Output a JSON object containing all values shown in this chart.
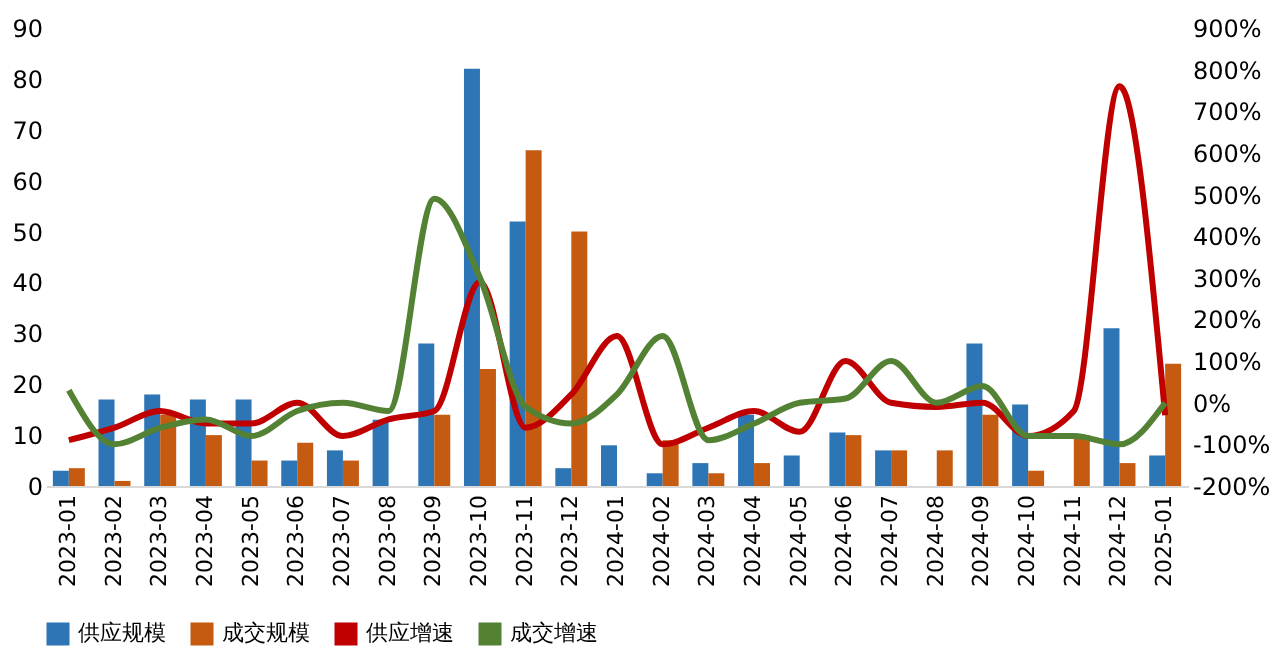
{
  "chart_data": {
    "type": "bar",
    "categories": [
      "2023-01",
      "2023-02",
      "2023-03",
      "2023-04",
      "2023-05",
      "2023-06",
      "2023-07",
      "2023-08",
      "2023-09",
      "2023-10",
      "2023-11",
      "2023-12",
      "2024-01",
      "2024-02",
      "2024-03",
      "2024-04",
      "2024-05",
      "2024-06",
      "2024-07",
      "2024-08",
      "2024-09",
      "2024-10",
      "2024-11",
      "2024-12",
      "2025-01"
    ],
    "series": [
      {
        "name": "供应规模",
        "color": "#2e75b6",
        "values": [
          3,
          17,
          18,
          17,
          17,
          5,
          7,
          13,
          28,
          82,
          52,
          3.5,
          8,
          2.5,
          4.5,
          14,
          6,
          10.5,
          7,
          null,
          28,
          16,
          null,
          31,
          6
        ]
      },
      {
        "name": "成交规模",
        "color": "#c55a11",
        "values": [
          3.5,
          1,
          14,
          10,
          5,
          8.5,
          5,
          null,
          14,
          23,
          66,
          50,
          null,
          9,
          2.5,
          4.5,
          null,
          10,
          7,
          7,
          14,
          3,
          10,
          4.5,
          24
        ]
      },
      {
        "name": "供应增速",
        "type": "line",
        "axis": "y2",
        "color": "#c00000",
        "values": [
          -90,
          -60,
          -20,
          -50,
          -50,
          0,
          -80,
          -40,
          -20,
          290,
          -60,
          20,
          160,
          -100,
          -60,
          -20,
          -70,
          100,
          0,
          -10,
          0,
          -80,
          -20,
          760,
          -30
        ]
      },
      {
        "name": "成交增速",
        "type": "line",
        "axis": "y2",
        "color": "#548235",
        "values": [
          30,
          -100,
          -60,
          -40,
          -80,
          -20,
          0,
          -20,
          490,
          300,
          -10,
          -50,
          20,
          160,
          -90,
          -50,
          0,
          10,
          100,
          0,
          40,
          -80,
          -80,
          -100,
          0
        ]
      }
    ],
    "ylim": [
      0,
      90
    ],
    "yticks": [
      0,
      10,
      20,
      30,
      40,
      50,
      60,
      70,
      80,
      90
    ],
    "y2lim": [
      -200,
      900
    ],
    "y2ticks": [
      {
        "value": -200,
        "label": "-200%"
      },
      {
        "value": -100,
        "label": "-100%"
      },
      {
        "value": 0,
        "label": "0%"
      },
      {
        "value": 100,
        "label": "100%"
      },
      {
        "value": 200,
        "label": "200%"
      },
      {
        "value": 300,
        "label": "300%"
      },
      {
        "value": 400,
        "label": "400%"
      },
      {
        "value": 500,
        "label": "500%"
      },
      {
        "value": 600,
        "label": "600%"
      },
      {
        "value": 700,
        "label": "700%"
      },
      {
        "value": 800,
        "label": "800%"
      },
      {
        "value": 900,
        "label": "900%"
      }
    ],
    "grid": false,
    "legend": "bottom",
    "line_style": "solid",
    "marker": "none"
  }
}
